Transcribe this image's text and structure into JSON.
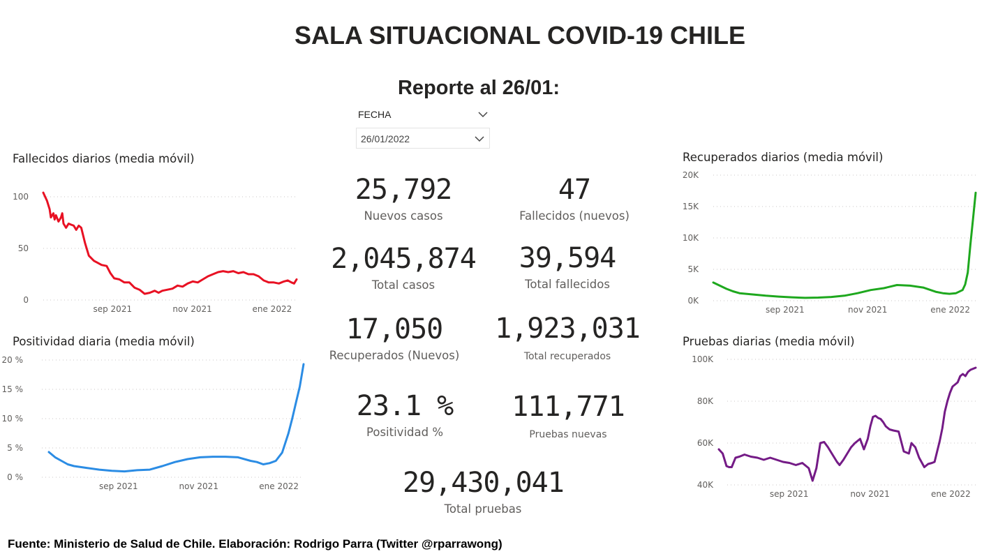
{
  "header": {
    "title": "SALA SITUACIONAL COVID-19 CHILE",
    "subtitle": "Reporte al 26/01:"
  },
  "slicer": {
    "label": "FECHA",
    "value": "26/01/2022"
  },
  "kpis": [
    {
      "value": "25,792",
      "label": "Nuevos casos"
    },
    {
      "value": "47",
      "label": "Fallecidos (nuevos)"
    },
    {
      "value": "2,045,874",
      "label": "Total casos"
    },
    {
      "value": "39,594",
      "label": "Total fallecidos"
    },
    {
      "value": "17,050",
      "label": "Recuperados (Nuevos)"
    },
    {
      "value": "1,923,031",
      "label": "Total recuperados"
    },
    {
      "value": "23.1 %",
      "label": "Positividad %"
    },
    {
      "value": "111,771",
      "label": "Pruebas nuevas"
    },
    {
      "value": "29,430,041",
      "label": "Total pruebas"
    }
  ],
  "footer": "Fuente: Ministerio de Salud de Chile. Elaboración: Rodrigo Parra (Twitter @rparrawong)",
  "colors": {
    "fallecidos": "#e81123",
    "positividad": "#2b8ce4",
    "recuperados": "#1ea81e",
    "pruebas": "#741b86",
    "grid": "#c8c6c4",
    "text": "#252423",
    "axis_text": "#605e5c"
  },
  "chart_data": [
    {
      "id": "fallecidos",
      "type": "line",
      "title": "Fallecidos diarios (media móvil)",
      "xlim": [
        0,
        186
      ],
      "xticks": [
        {
          "x": 53,
          "label": "sep 2021"
        },
        {
          "x": 114,
          "label": "nov 2021"
        },
        {
          "x": 175,
          "label": "ene 2022"
        }
      ],
      "ylim": [
        0,
        100
      ],
      "yticks": [
        {
          "v": 0,
          "label": "0"
        },
        {
          "v": 50,
          "label": "50"
        },
        {
          "v": 100,
          "label": "100"
        }
      ],
      "x": [
        0,
        3,
        5,
        6,
        8,
        9,
        10,
        12,
        14,
        15,
        16,
        18,
        20,
        22,
        24,
        26,
        28,
        30,
        33,
        36,
        40,
        43,
        46,
        50,
        53,
        56,
        60,
        64,
        68,
        72,
        76,
        80,
        84,
        88,
        91,
        94,
        98,
        102,
        106,
        110,
        114,
        118,
        122,
        126,
        130,
        134,
        138,
        142,
        146,
        150,
        154,
        158,
        162,
        166,
        170,
        174,
        178,
        182,
        186,
        190,
        193,
        196,
        198,
        200
      ],
      "y": [
        104,
        96,
        88,
        80,
        84,
        78,
        82,
        76,
        80,
        84,
        74,
        70,
        74,
        73,
        72,
        68,
        72,
        70,
        55,
        43,
        38,
        36,
        34,
        33,
        26,
        21,
        20,
        17,
        17,
        12,
        10,
        6,
        7,
        9,
        7,
        9,
        10,
        11,
        14,
        13,
        16,
        18,
        17,
        20,
        23,
        25,
        27,
        28,
        27,
        28,
        26,
        27,
        25,
        25,
        23,
        19,
        17,
        17,
        16,
        18,
        19,
        17,
        16,
        20
      ]
    },
    {
      "id": "recuperados",
      "type": "line",
      "title": "Recuperados diarios (media móvil)",
      "xlim": [
        0,
        186
      ],
      "xticks": [
        {
          "x": 53,
          "label": "sep 2021"
        },
        {
          "x": 114,
          "label": "nov 2021"
        },
        {
          "x": 175,
          "label": "ene 2022"
        }
      ],
      "ylim": [
        0,
        20000
      ],
      "yticks": [
        {
          "v": 0,
          "label": "0K"
        },
        {
          "v": 5000,
          "label": "5K"
        },
        {
          "v": 10000,
          "label": "10K"
        },
        {
          "v": 15000,
          "label": "15K"
        },
        {
          "v": 20000,
          "label": "20K"
        }
      ],
      "x": [
        0,
        5,
        10,
        15,
        20,
        30,
        40,
        50,
        60,
        70,
        80,
        90,
        100,
        110,
        120,
        130,
        140,
        150,
        160,
        170,
        175,
        180,
        185,
        190,
        192,
        194,
        196,
        198,
        200
      ],
      "y": [
        2900,
        2400,
        1900,
        1500,
        1200,
        1000,
        800,
        650,
        550,
        450,
        500,
        600,
        800,
        1200,
        1700,
        2000,
        2500,
        2400,
        2100,
        1400,
        1200,
        1100,
        1200,
        1700,
        2600,
        4500,
        9000,
        13000,
        17200
      ]
    },
    {
      "id": "positividad",
      "type": "line",
      "title": "Positividad diaria (media móvil)",
      "xlim": [
        0,
        186
      ],
      "xticks": [
        {
          "x": 53,
          "label": "sep 2021"
        },
        {
          "x": 114,
          "label": "nov 2021"
        },
        {
          "x": 175,
          "label": "ene 2022"
        }
      ],
      "ylim": [
        0,
        20
      ],
      "yticks": [
        {
          "v": 0,
          "label": "0 %"
        },
        {
          "v": 5,
          "label": "5 %"
        },
        {
          "v": 10,
          "label": "10 %"
        },
        {
          "v": 15,
          "label": "15 %"
        },
        {
          "v": 20,
          "label": "20 %"
        }
      ],
      "x": [
        0,
        5,
        10,
        15,
        20,
        30,
        40,
        50,
        60,
        70,
        80,
        90,
        100,
        110,
        120,
        130,
        140,
        150,
        160,
        165,
        170,
        175,
        180,
        185,
        190,
        193,
        196,
        199,
        202
      ],
      "y": [
        4.3,
        3.4,
        2.8,
        2.2,
        1.9,
        1.6,
        1.3,
        1.1,
        1.0,
        1.2,
        1.3,
        1.9,
        2.6,
        3.1,
        3.4,
        3.5,
        3.5,
        3.4,
        2.8,
        2.6,
        2.2,
        2.4,
        2.8,
        4.2,
        7.5,
        10,
        12.8,
        15.5,
        19.3
      ]
    },
    {
      "id": "pruebas",
      "type": "line",
      "title": "Pruebas diarias (media móvil)",
      "xlim": [
        0,
        186
      ],
      "xticks": [
        {
          "x": 53,
          "label": "sep 2021"
        },
        {
          "x": 114,
          "label": "nov 2021"
        },
        {
          "x": 175,
          "label": "ene 2022"
        }
      ],
      "ylim": [
        40000,
        100000
      ],
      "yticks": [
        {
          "v": 40000,
          "label": "40K"
        },
        {
          "v": 60000,
          "label": "60K"
        },
        {
          "v": 80000,
          "label": "80K"
        },
        {
          "v": 100000,
          "label": "100K"
        }
      ],
      "x": [
        0,
        3,
        6,
        8,
        10,
        13,
        16,
        20,
        25,
        30,
        35,
        40,
        45,
        50,
        55,
        60,
        65,
        70,
        73,
        76,
        79,
        82,
        85,
        88,
        90,
        92,
        94,
        97,
        100,
        103,
        106,
        110,
        113,
        116,
        118,
        120,
        122,
        124,
        126,
        128,
        130,
        133,
        136,
        140,
        144,
        148,
        150,
        153,
        156,
        160,
        163,
        166,
        168,
        170,
        172,
        174,
        176,
        178,
        180,
        182,
        184,
        186,
        188,
        190,
        192,
        194,
        196,
        198,
        200
      ],
      "y": [
        57000,
        55000,
        49000,
        48500,
        48500,
        53000,
        53500,
        54500,
        53500,
        53000,
        52000,
        53000,
        52000,
        51000,
        50500,
        49500,
        50500,
        48000,
        42000,
        48000,
        60000,
        60500,
        58000,
        55000,
        53000,
        51000,
        49500,
        52000,
        55000,
        58000,
        60000,
        62000,
        57000,
        62000,
        68000,
        72500,
        73000,
        72000,
        71500,
        70000,
        68000,
        66500,
        66000,
        65500,
        56000,
        55000,
        60000,
        58000,
        53000,
        48500,
        50000,
        50500,
        51000,
        56000,
        61000,
        67000,
        75000,
        80000,
        84000,
        87000,
        88000,
        89000,
        92000,
        93000,
        92000,
        94000,
        95000,
        95500,
        96000
      ]
    }
  ]
}
